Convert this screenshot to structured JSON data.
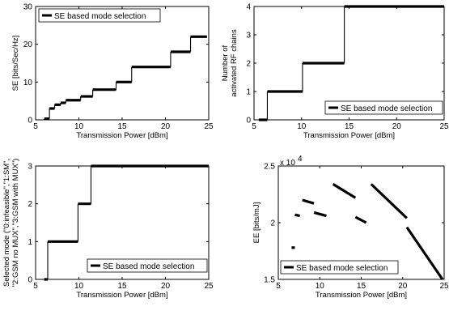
{
  "chart_data": [
    {
      "type": "line",
      "step": true,
      "xlabel": "Transmission Power [dBm]",
      "ylabel": "SE [bits/Sec/Hz]",
      "xlim": [
        5,
        25
      ],
      "ylim": [
        0,
        30
      ],
      "xticks": [
        5,
        10,
        15,
        20,
        25
      ],
      "yticks": [
        0,
        10,
        20,
        30
      ],
      "grid": false,
      "legend_position": "top-left",
      "series": [
        {
          "name": "SE based mode selection",
          "segments": [
            {
              "x": [
                6,
                6.6
              ],
              "y": [
                0.3,
                0.3
              ]
            },
            {
              "x": [
                6.6,
                7.2
              ],
              "y": [
                3,
                3
              ]
            },
            {
              "x": [
                7.2,
                7.9
              ],
              "y": [
                4,
                4
              ]
            },
            {
              "x": [
                7.9,
                8.5
              ],
              "y": [
                4.5,
                4.5
              ]
            },
            {
              "x": [
                8.5,
                10.2
              ],
              "y": [
                5.2,
                5.2
              ]
            },
            {
              "x": [
                10.2,
                11.6
              ],
              "y": [
                6.2,
                6.2
              ]
            },
            {
              "x": [
                11.6,
                14.3
              ],
              "y": [
                8,
                8
              ]
            },
            {
              "x": [
                14.3,
                16.1
              ],
              "y": [
                10,
                10
              ]
            },
            {
              "x": [
                16.1,
                20.6
              ],
              "y": [
                14,
                14
              ]
            },
            {
              "x": [
                20.6,
                22.9
              ],
              "y": [
                18,
                18
              ]
            },
            {
              "x": [
                22.9,
                24.8
              ],
              "y": [
                22,
                22
              ]
            }
          ]
        }
      ]
    },
    {
      "type": "line",
      "step": true,
      "xlabel": "Transmission Power [dBm]",
      "ylabel_lines": [
        "Number of",
        "activated RF chains"
      ],
      "xlim": [
        5,
        25
      ],
      "ylim": [
        0,
        4
      ],
      "xticks": [
        5,
        10,
        15,
        20,
        25
      ],
      "yticks": [
        0,
        1,
        2,
        3,
        4
      ],
      "grid": false,
      "legend_position": "bottom-right",
      "series": [
        {
          "name": "SE based mode selection",
          "segments": [
            {
              "x": [
                5.5,
                6.4
              ],
              "y": [
                0,
                0
              ]
            },
            {
              "x": [
                6.4,
                10.1
              ],
              "y": [
                1,
                1
              ]
            },
            {
              "x": [
                10.1,
                14.5
              ],
              "y": [
                2,
                2
              ]
            },
            {
              "x": [
                14.5,
                25
              ],
              "y": [
                4,
                4
              ]
            }
          ]
        }
      ]
    },
    {
      "type": "line",
      "step": true,
      "xlabel": "Transmission Power [dBm]",
      "ylabel_lines": [
        "Selected mode (\"0:infeasible\",\"1:SM\",",
        "\"2:GSM no MUX\",\"3:GSM with MUX\")"
      ],
      "xlim": [
        5,
        25
      ],
      "ylim": [
        0,
        3
      ],
      "xticks": [
        5,
        10,
        15,
        20,
        25
      ],
      "yticks": [
        0,
        1,
        2,
        3
      ],
      "grid": false,
      "legend_position": "bottom-right",
      "series": [
        {
          "name": "SE based mode selection",
          "segments": [
            {
              "x": [
                6,
                6.4
              ],
              "y": [
                0,
                0
              ]
            },
            {
              "x": [
                6.4,
                9.9
              ],
              "y": [
                1,
                1
              ]
            },
            {
              "x": [
                9.9,
                11.4
              ],
              "y": [
                2,
                2
              ]
            },
            {
              "x": [
                11.4,
                25
              ],
              "y": [
                3,
                3
              ]
            }
          ]
        }
      ]
    },
    {
      "type": "line",
      "step": false,
      "xlabel": "Transmission Power [dBm]",
      "ylabel": "EE [bits/mJ]",
      "y_multiplier": "x 10",
      "y_multiplier_exp": "4",
      "xlim": [
        5,
        25
      ],
      "ylim": [
        1.5,
        2.5
      ],
      "xticks": [
        5,
        10,
        15,
        20,
        25
      ],
      "yticks": [
        1.5,
        2,
        2.5
      ],
      "grid": false,
      "legend_position": "bottom-left",
      "series": [
        {
          "name": "SE based mode selection",
          "segments": [
            {
              "x": [
                6.6,
                7.0
              ],
              "y": [
                1.78,
                1.78
              ]
            },
            {
              "x": [
                7.0,
                7.6
              ],
              "y": [
                2.07,
                2.06
              ]
            },
            {
              "x": [
                7.9,
                9.3
              ],
              "y": [
                2.2,
                2.17
              ]
            },
            {
              "x": [
                9.3,
                10.8
              ],
              "y": [
                2.09,
                2.06
              ]
            },
            {
              "x": [
                11.6,
                14.3
              ],
              "y": [
                2.34,
                2.22
              ]
            },
            {
              "x": [
                14.3,
                15.6
              ],
              "y": [
                2.05,
                2.0
              ]
            },
            {
              "x": [
                16.2,
                20.5
              ],
              "y": [
                2.34,
                2.04
              ]
            },
            {
              "x": [
                20.5,
                24.8
              ],
              "y": [
                1.96,
                1.5
              ]
            }
          ]
        }
      ]
    }
  ]
}
